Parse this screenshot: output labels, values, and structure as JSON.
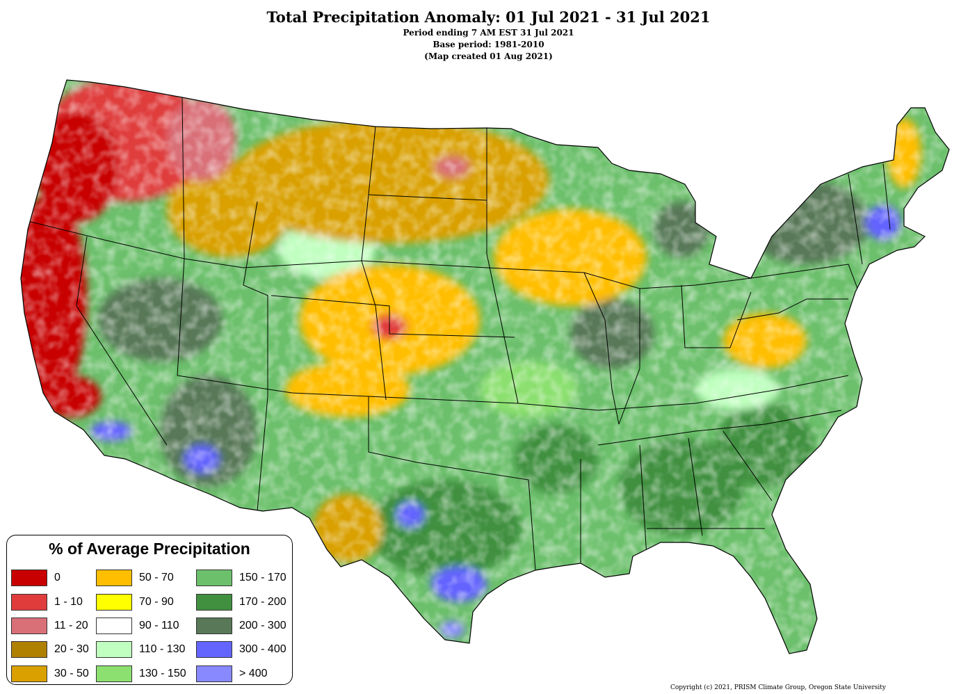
{
  "header": {
    "title": "Total Precipitation Anomaly: 01 Jul 2021 - 31 Jul 2021",
    "line2": "Period ending 7 AM EST 31 Jul 2021",
    "line3": "Base period: 1981-2010",
    "line4": "(Map created 01 Aug 2021)"
  },
  "legend": {
    "title": "% of Average Precipitation",
    "items": [
      {
        "label": "0",
        "color": "#c80000"
      },
      {
        "label": "1 - 10",
        "color": "#e03c3c"
      },
      {
        "label": "11 - 20",
        "color": "#d97078"
      },
      {
        "label": "20 - 30",
        "color": "#b08000"
      },
      {
        "label": "30 - 50",
        "color": "#d9a000"
      },
      {
        "label": "50 - 70",
        "color": "#ffbe00"
      },
      {
        "label": "70 - 90",
        "color": "#ffff00"
      },
      {
        "label": "90 - 110",
        "color": "#ffffff"
      },
      {
        "label": "110 - 130",
        "color": "#c0ffc0"
      },
      {
        "label": "130 - 150",
        "color": "#8ce070"
      },
      {
        "label": "150 - 170",
        "color": "#6cc06c"
      },
      {
        "label": "170 - 200",
        "color": "#409040"
      },
      {
        "label": "200 - 300",
        "color": "#587858"
      },
      {
        "label": "300 - 400",
        "color": "#6464ff"
      },
      {
        "label": "> 400",
        "color": "#8888ff"
      }
    ]
  },
  "copyright": "Copyright (c) 2021, PRISM Climate Group, Oregon State University"
}
